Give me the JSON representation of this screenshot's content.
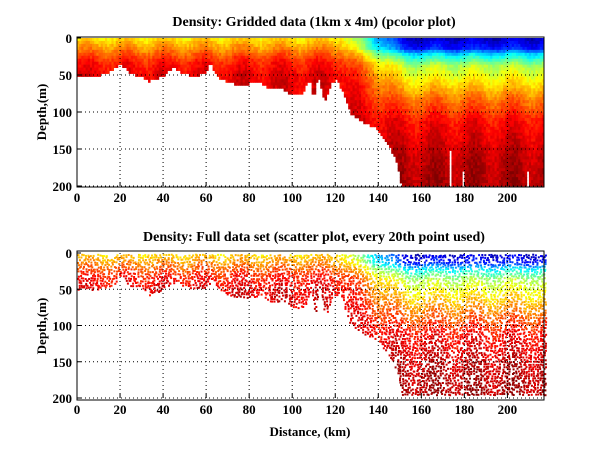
{
  "chart_data": [
    {
      "type": "heatmap",
      "title": "Density: Gridded data (1km x 4m) (pcolor plot)",
      "xlabel": "",
      "ylabel": "Depth,(m)",
      "xlim": [
        0,
        217
      ],
      "ylim": [
        200,
        0
      ],
      "xticks": [
        "0",
        "20",
        "40",
        "60",
        "80",
        "100",
        "120",
        "140",
        "160",
        "180",
        "200"
      ],
      "yticks": [
        "0",
        "50",
        "100",
        "150",
        "200"
      ],
      "grid": true,
      "colormap": "jet",
      "cell_size_km_m": [
        1,
        4
      ],
      "bottom_depth": {
        "distance_km": [
          0,
          5,
          10,
          15,
          20,
          25,
          30,
          33,
          40,
          45,
          50,
          55,
          60,
          62,
          65,
          70,
          75,
          85,
          90,
          95,
          100,
          105,
          108,
          110,
          112,
          115,
          118,
          121,
          124,
          127,
          135,
          140,
          143,
          148,
          151,
          217
        ],
        "depth_m": [
          50,
          50,
          49,
          45,
          33,
          47,
          50,
          57,
          50,
          38,
          47,
          50,
          45,
          33,
          50,
          57,
          62,
          58,
          68,
          66,
          75,
          75,
          53,
          80,
          50,
          85,
          60,
          55,
          75,
          100,
          115,
          122,
          135,
          160,
          200,
          200
        ]
      },
      "data_gaps": [
        {
          "distance_km": 173,
          "from_depth_m": 150
        },
        {
          "distance_km": 179,
          "from_depth_m": 178
        },
        {
          "distance_km": 209,
          "from_depth_m": 178
        }
      ],
      "density_index_profiles": {
        "shelf": {
          "depth_m": [
            0,
            10,
            30,
            50,
            200
          ],
          "value": [
            0.66,
            0.72,
            0.85,
            0.9,
            0.95
          ]
        },
        "offshore": {
          "depth_m": [
            0,
            12,
            20,
            35,
            55,
            80,
            110,
            160,
            200
          ],
          "value": [
            0.08,
            0.15,
            0.35,
            0.55,
            0.64,
            0.76,
            0.87,
            0.94,
            0.96
          ]
        }
      }
    },
    {
      "type": "scatter",
      "title": "Density: Full data set (scatter plot, every 20th point used)",
      "xlabel": "Distance, (km)",
      "ylabel": "Depth,(m)",
      "xlim": [
        0,
        217
      ],
      "ylim": [
        200,
        0
      ],
      "xticks": [
        "0",
        "20",
        "40",
        "60",
        "80",
        "100",
        "120",
        "140",
        "160",
        "180",
        "200"
      ],
      "yticks": [
        "0",
        "50",
        "100",
        "150",
        "200"
      ],
      "grid": true,
      "colormap": "jet",
      "max_depth_m": 195
    }
  ]
}
